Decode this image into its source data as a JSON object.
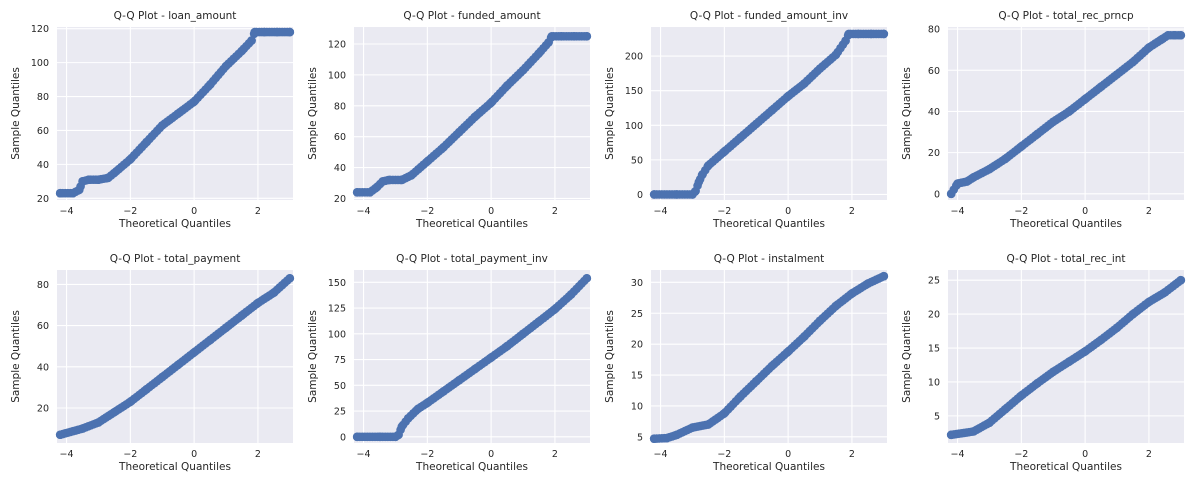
{
  "style": {
    "background": "#eaeaf2",
    "grid_color": "#ffffff",
    "marker_color": "#4c72b0",
    "text_color": "#262626"
  },
  "chart_data": [
    {
      "type": "scatter",
      "title": "Q-Q Plot - loan_amount",
      "xlabel": "Theoretical Quantiles",
      "ylabel": "Sample Quantiles",
      "xlim": [
        -4.3,
        3.1
      ],
      "ylim": [
        19,
        121
      ],
      "xticks": [
        -4,
        -2,
        0,
        2
      ],
      "yticks": [
        20,
        40,
        60,
        80,
        100,
        120
      ],
      "grid": true,
      "x": [
        -4.2,
        -3.8,
        -3.6,
        -3.5,
        -3.3,
        -3.0,
        -2.7,
        -2.5,
        -2.0,
        -1.5,
        -1.0,
        -0.5,
        0.0,
        0.5,
        1.0,
        1.5,
        1.8,
        1.9,
        2.2,
        2.6,
        3.0
      ],
      "y": [
        23,
        23,
        25,
        30,
        31,
        31,
        32,
        35,
        43,
        53,
        63,
        70,
        77,
        87,
        98,
        107,
        113,
        118,
        118,
        118,
        118
      ]
    },
    {
      "type": "scatter",
      "title": "Q-Q Plot - funded_amount",
      "xlabel": "Theoretical Quantiles",
      "ylabel": "Sample Quantiles",
      "xlim": [
        -4.3,
        3.1
      ],
      "ylim": [
        19,
        131
      ],
      "xticks": [
        -4,
        -2,
        0,
        2
      ],
      "yticks": [
        20,
        40,
        60,
        80,
        100,
        120
      ],
      "grid": true,
      "x": [
        -4.2,
        -3.8,
        -3.6,
        -3.4,
        -3.2,
        -2.8,
        -2.5,
        -2.0,
        -1.5,
        -1.0,
        -0.5,
        0.0,
        0.5,
        1.0,
        1.5,
        1.8,
        1.9,
        2.2,
        2.6,
        3.0
      ],
      "y": [
        24,
        24,
        27,
        31,
        32,
        32,
        35,
        44,
        53,
        63,
        73,
        82,
        93,
        103,
        114,
        121,
        125,
        125,
        125,
        125
      ]
    },
    {
      "type": "scatter",
      "title": "Q-Q Plot - funded_amount_inv",
      "xlabel": "Theoretical Quantiles",
      "ylabel": "Sample Quantiles",
      "xlim": [
        -4.3,
        3.1
      ],
      "ylim": [
        -8,
        242
      ],
      "xticks": [
        -4,
        -2,
        0,
        2
      ],
      "yticks": [
        0,
        50,
        100,
        150,
        200
      ],
      "grid": true,
      "x": [
        -4.2,
        -3.5,
        -3.0,
        -2.9,
        -2.8,
        -2.7,
        -2.5,
        -2.0,
        -1.5,
        -1.0,
        -0.5,
        0.0,
        0.5,
        1.0,
        1.5,
        1.8,
        1.9,
        2.2,
        2.6,
        3.0
      ],
      "y": [
        0,
        0,
        0,
        5,
        18,
        28,
        42,
        62,
        82,
        102,
        122,
        142,
        160,
        182,
        202,
        222,
        232,
        232,
        232,
        232
      ]
    },
    {
      "type": "scatter",
      "title": "Q-Q Plot - total_rec_prncp",
      "xlabel": "Theoretical Quantiles",
      "ylabel": "Sample Quantiles",
      "xlim": [
        -4.3,
        3.1
      ],
      "ylim": [
        -3,
        81
      ],
      "xticks": [
        -4,
        -2,
        0,
        2
      ],
      "yticks": [
        0,
        20,
        40,
        60,
        80
      ],
      "grid": true,
      "x": [
        -4.2,
        -4.0,
        -3.7,
        -3.5,
        -3.0,
        -2.5,
        -2.0,
        -1.5,
        -1.0,
        -0.5,
        0.0,
        0.5,
        1.0,
        1.5,
        2.0,
        2.4,
        2.6,
        2.8,
        3.0
      ],
      "y": [
        0,
        5,
        6,
        8,
        12,
        17,
        23,
        29,
        35,
        40,
        46,
        52,
        58,
        64,
        71,
        75,
        77,
        77,
        77
      ]
    },
    {
      "type": "scatter",
      "title": "Q-Q Plot - total_payment",
      "xlabel": "Theoretical Quantiles",
      "ylabel": "Sample Quantiles",
      "xlim": [
        -4.3,
        3.1
      ],
      "ylim": [
        3,
        87
      ],
      "xticks": [
        -4,
        -2,
        0,
        2
      ],
      "yticks": [
        20,
        40,
        60,
        80
      ],
      "grid": true,
      "x": [
        -4.2,
        -3.5,
        -3.0,
        -2.5,
        -2.0,
        -1.5,
        -1.0,
        -0.5,
        0.0,
        0.5,
        1.0,
        1.5,
        2.0,
        2.5,
        3.0
      ],
      "y": [
        7,
        10,
        13,
        18,
        23,
        29,
        35,
        41,
        47,
        53,
        59,
        65,
        71,
        76,
        83
      ]
    },
    {
      "type": "scatter",
      "title": "Q-Q Plot - total_payment_inv",
      "xlabel": "Theoretical Quantiles",
      "ylabel": "Sample Quantiles",
      "xlim": [
        -4.3,
        3.1
      ],
      "ylim": [
        -6,
        162
      ],
      "xticks": [
        -4,
        -2,
        0,
        2
      ],
      "yticks": [
        0,
        25,
        50,
        75,
        100,
        125,
        150
      ],
      "grid": true,
      "x": [
        -4.2,
        -3.5,
        -3.0,
        -2.9,
        -2.8,
        -2.6,
        -2.3,
        -2.0,
        -1.5,
        -1.0,
        -0.5,
        0.0,
        0.5,
        1.0,
        1.5,
        2.0,
        2.5,
        3.0
      ],
      "y": [
        0,
        0,
        0,
        2,
        10,
        18,
        27,
        33,
        44,
        55,
        66,
        77,
        88,
        100,
        112,
        124,
        138,
        154
      ]
    },
    {
      "type": "scatter",
      "title": "Q-Q Plot - instalment",
      "xlabel": "Theoretical Quantiles",
      "ylabel": "Sample Quantiles",
      "xlim": [
        -4.3,
        3.1
      ],
      "ylim": [
        4,
        32
      ],
      "xticks": [
        -4,
        -2,
        0,
        2
      ],
      "yticks": [
        5,
        10,
        15,
        20,
        25,
        30
      ],
      "grid": true,
      "x": [
        -4.2,
        -3.8,
        -3.5,
        -3.0,
        -2.5,
        -2.0,
        -1.5,
        -1.0,
        -0.5,
        0.0,
        0.5,
        1.0,
        1.5,
        2.0,
        2.5,
        3.0
      ],
      "y": [
        4.7,
        4.8,
        5.3,
        6.5,
        7.0,
        8.8,
        11.5,
        14.0,
        16.5,
        18.8,
        21.2,
        23.8,
        26.2,
        28.2,
        29.8,
        31.0
      ]
    },
    {
      "type": "scatter",
      "title": "Q-Q Plot - total_rec_int",
      "xlabel": "Theoretical Quantiles",
      "ylabel": "Sample Quantiles",
      "xlim": [
        -4.3,
        3.1
      ],
      "ylim": [
        1,
        26.5
      ],
      "xticks": [
        -4,
        -2,
        0,
        2
      ],
      "yticks": [
        5,
        10,
        15,
        20,
        25
      ],
      "grid": true,
      "x": [
        -4.2,
        -3.5,
        -3.0,
        -2.5,
        -2.0,
        -1.5,
        -1.0,
        -0.5,
        0.0,
        0.5,
        1.0,
        1.5,
        2.0,
        2.5,
        3.0
      ],
      "y": [
        2.2,
        2.7,
        4.0,
        6.0,
        8.0,
        9.8,
        11.5,
        13.0,
        14.5,
        16.2,
        18.0,
        20.0,
        21.8,
        23.2,
        25.0
      ]
    }
  ]
}
